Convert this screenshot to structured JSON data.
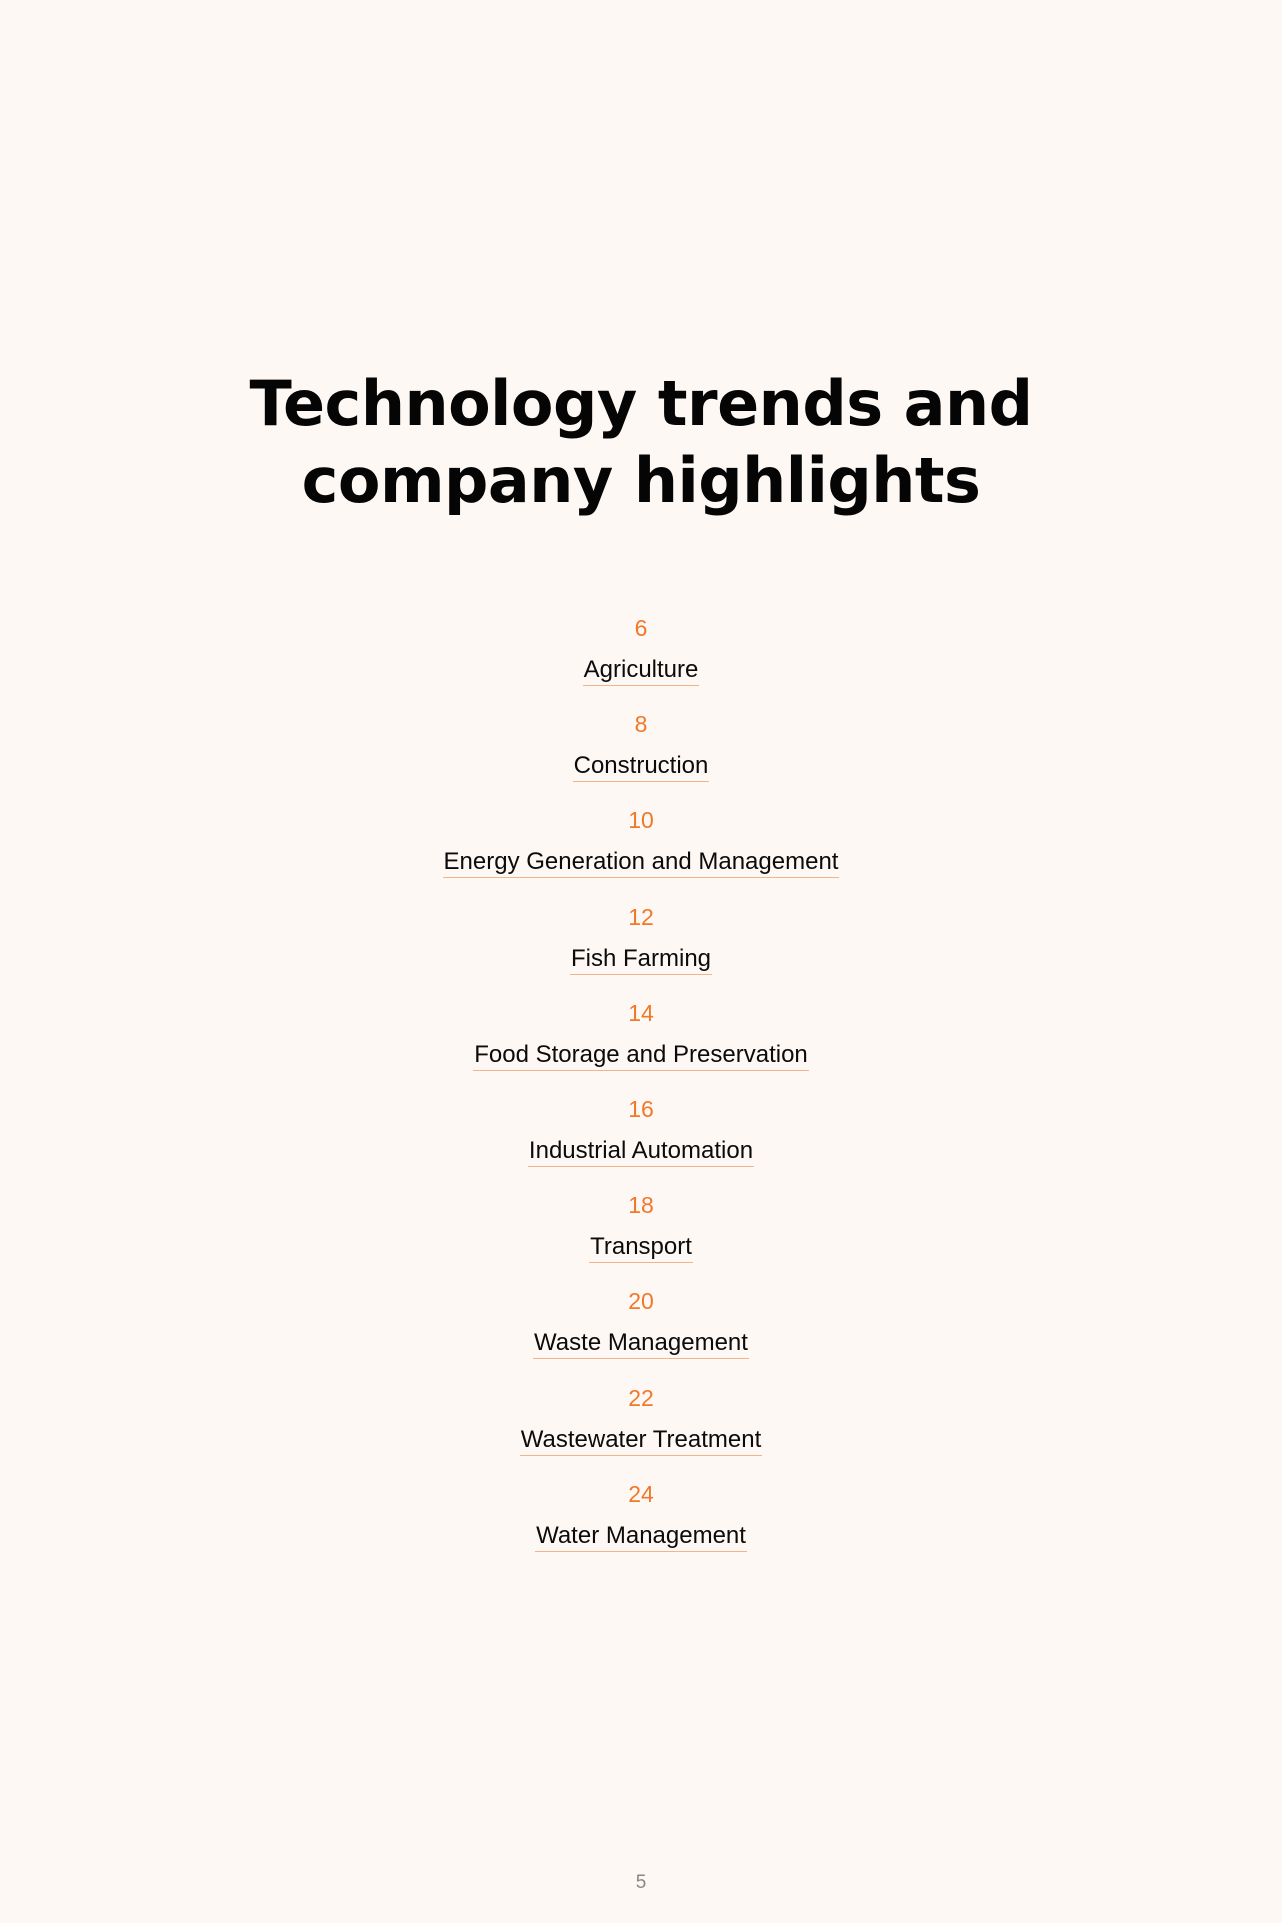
{
  "title": {
    "line1": "Technology trends and",
    "line2": "company highlights"
  },
  "toc": [
    {
      "page": "6",
      "label": "Agriculture"
    },
    {
      "page": "8",
      "label": "Construction"
    },
    {
      "page": "10",
      "label": "Energy Generation and Management"
    },
    {
      "page": "12",
      "label": "Fish Farming"
    },
    {
      "page": "14",
      "label": "Food Storage and Preservation"
    },
    {
      "page": "16",
      "label": "Industrial Automation"
    },
    {
      "page": "18",
      "label": "Transport"
    },
    {
      "page": "20",
      "label": "Waste Management"
    },
    {
      "page": "22",
      "label": "Wastewater Treatment"
    },
    {
      "page": "24",
      "label": "Water Management"
    }
  ],
  "footer": {
    "page_number": "5"
  },
  "colors": {
    "background": "#fef8f4",
    "accent": "#f0782a",
    "text": "#0b0b0b"
  }
}
